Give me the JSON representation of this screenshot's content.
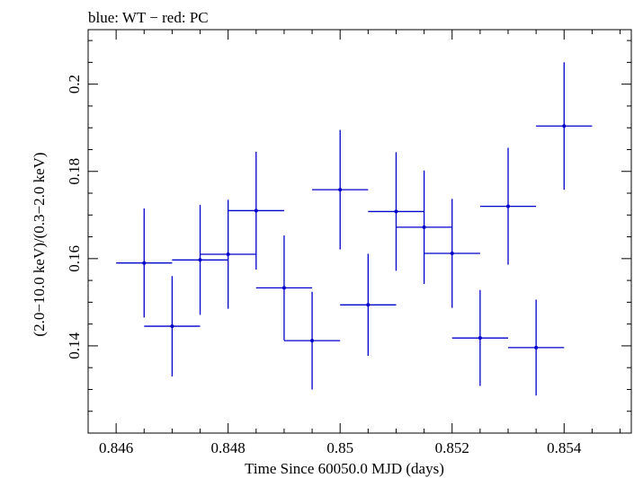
{
  "chart_data": {
    "type": "scatter",
    "title": "blue: WT − red: PC",
    "xlabel": "Time Since 60050.0 MJD (days)",
    "ylabel": "(2.0−10.0 keV)/(0.3−2.0 keV)",
    "xlim": [
      0.8455,
      0.8552
    ],
    "ylim": [
      0.12,
      0.2125
    ],
    "x_ticks": [
      0.846,
      0.848,
      0.85,
      0.852,
      0.854
    ],
    "x_tick_labels": [
      "0.846",
      "0.848",
      "0.85",
      "0.852",
      "0.854"
    ],
    "y_ticks": [
      0.14,
      0.16,
      0.18,
      0.2
    ],
    "y_tick_labels": [
      "0.14",
      "0.16",
      "0.18",
      "0.2"
    ],
    "grid": false,
    "series": [
      {
        "color": "#0000cc",
        "points": [
          {
            "x": 0.8465,
            "y": 0.159,
            "xerr": 0.0005,
            "yerr": 0.0125
          },
          {
            "x": 0.847,
            "y": 0.1445,
            "xerr": 0.0005,
            "yerr": 0.0115
          },
          {
            "x": 0.8475,
            "y": 0.1597,
            "xerr": 0.0005,
            "yerr": 0.0126
          },
          {
            "x": 0.848,
            "y": 0.161,
            "xerr": 0.0005,
            "yerr": 0.0125
          },
          {
            "x": 0.8485,
            "y": 0.171,
            "xerr": 0.0005,
            "yerr": 0.0135
          },
          {
            "x": 0.849,
            "y": 0.1533,
            "xerr": 0.0005,
            "yerr": 0.012
          },
          {
            "x": 0.8495,
            "y": 0.1412,
            "xerr": 0.0005,
            "yerr": 0.0112
          },
          {
            "x": 0.85,
            "y": 0.1758,
            "xerr": 0.0005,
            "yerr": 0.0137
          },
          {
            "x": 0.8505,
            "y": 0.1494,
            "xerr": 0.0005,
            "yerr": 0.0117
          },
          {
            "x": 0.851,
            "y": 0.1708,
            "xerr": 0.0005,
            "yerr": 0.0136
          },
          {
            "x": 0.8515,
            "y": 0.1672,
            "xerr": 0.0005,
            "yerr": 0.013
          },
          {
            "x": 0.852,
            "y": 0.1612,
            "xerr": 0.0005,
            "yerr": 0.0125
          },
          {
            "x": 0.8525,
            "y": 0.1418,
            "xerr": 0.0005,
            "yerr": 0.011
          },
          {
            "x": 0.853,
            "y": 0.172,
            "xerr": 0.0005,
            "yerr": 0.0134
          },
          {
            "x": 0.8535,
            "y": 0.1396,
            "xerr": 0.0005,
            "yerr": 0.011
          },
          {
            "x": 0.854,
            "y": 0.1904,
            "xerr": 0.0005,
            "yerr": 0.0146
          }
        ]
      }
    ]
  }
}
